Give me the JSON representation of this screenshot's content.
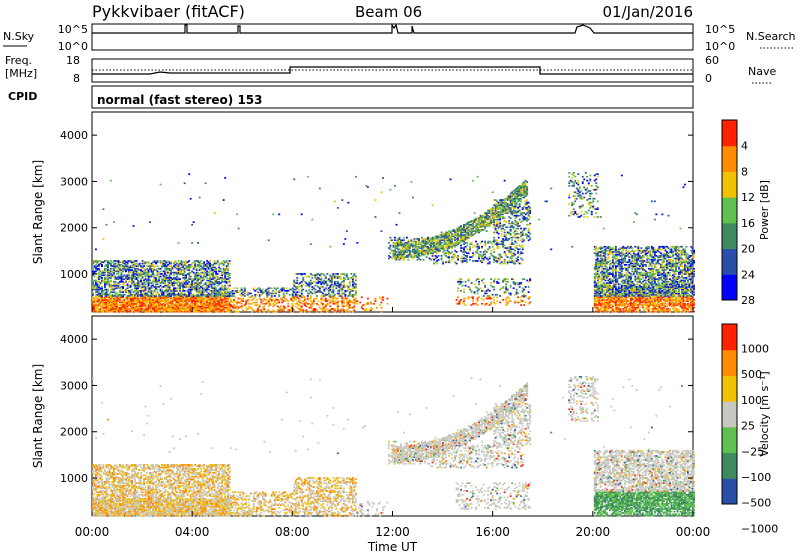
{
  "header": {
    "station": "Pykkvibaer (fitACF)",
    "beam": "Beam 06",
    "date": "01/Jan/2016"
  },
  "status_panels": {
    "nsky_label": "N.Sky",
    "nsearch_label": "N.Search",
    "nsky_ticks": [
      "10^5",
      "10^0"
    ],
    "nsearch_ticks": [
      "10^5",
      "10^0"
    ],
    "freq_label_line1": "Freq.",
    "freq_label_line2": "[MHz]",
    "freq_ticks": [
      "18",
      "8"
    ],
    "nave_label": "Nave",
    "nave_ticks": [
      "60",
      "0"
    ],
    "cpid_label": "CPID",
    "cpid_text": "normal (fast stereo) 153"
  },
  "chart_data": [
    {
      "type": "heatmap",
      "name": "power",
      "ylabel": "Slant Range [km]",
      "ylim": [
        180,
        4500
      ],
      "yticks": [
        "1000",
        "2000",
        "3000",
        "4000"
      ],
      "xlim": [
        0,
        24
      ],
      "colorbar_label": "Power [dB]",
      "colorbar_ticks": [
        "4",
        "8",
        "12",
        "16",
        "20",
        "24",
        "28"
      ],
      "colors": [
        "#0000ff",
        "#2b4fa8",
        "#3f8a5f",
        "#5ec150",
        "#f2c200",
        "#ff8c00",
        "#ff2200"
      ]
    },
    {
      "type": "heatmap",
      "name": "velocity",
      "ylabel": "Slant Range [km]",
      "ylim": [
        180,
        4500
      ],
      "yticks": [
        "1000",
        "2000",
        "3000",
        "4000"
      ],
      "xlim": [
        0,
        24
      ],
      "xlabel": "Time UT",
      "xticks": [
        "00:00",
        "04:00",
        "08:00",
        "12:00",
        "16:00",
        "20:00",
        "00:00"
      ],
      "colorbar_label": "Velocity [m s⁻¹]",
      "colorbar_ticks": [
        "1000",
        "500",
        "100",
        "25",
        "−25",
        "−100",
        "−500",
        "−1000"
      ],
      "colors": [
        "#2b4fa8",
        "#3f8a5f",
        "#5ec150",
        "#c8c8c0",
        "#f2c200",
        "#ff8c00",
        "#ff2200"
      ]
    }
  ]
}
